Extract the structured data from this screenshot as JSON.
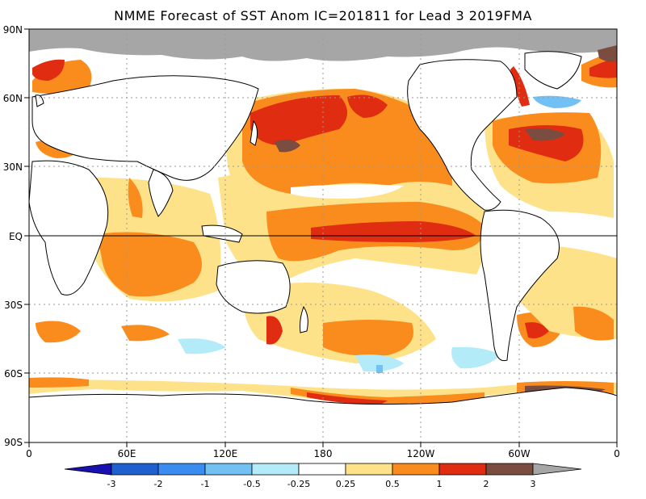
{
  "title": "NMME Forecast of SST Anom IC=201811 for Lead 3 2019FMA",
  "y_axis_labels": [
    "90N",
    "60N",
    "30N",
    "EQ",
    "30S",
    "60S",
    "90S"
  ],
  "x_axis_labels": [
    "0",
    "60E",
    "120E",
    "180",
    "120W",
    "60W",
    "0"
  ],
  "colorbar": {
    "labels": [
      "-3",
      "-2",
      "-1",
      "-0.5",
      "-0.25",
      "0.25",
      "0.5",
      "1",
      "2",
      "3"
    ],
    "colors": {
      "lt_m3": "#1a0fb0",
      "m3_m2": "#1f5fd0",
      "m2_m1": "#3a8cf0",
      "m1_m05": "#73c0f5",
      "m05_m025": "#b4ebf8",
      "m025_025": "#ffffff",
      "p025_p05": "#fde28a",
      "p05_p1": "#f98c1c",
      "p1_p2": "#e02c10",
      "p2_p3": "#7b4c40",
      "gt_p3": "#a6a6a6"
    }
  },
  "map_colors": {
    "land": "#ffffff",
    "coast": "#000000",
    "missing_ice": "#a6a6a6",
    "weak_warm": "#fde28a",
    "warm": "#f98c1c",
    "strong_warm": "#e02c10",
    "very_strong_warm": "#7b4c40",
    "weak_cool": "#b4ebf8",
    "cool": "#73c0f5"
  }
}
